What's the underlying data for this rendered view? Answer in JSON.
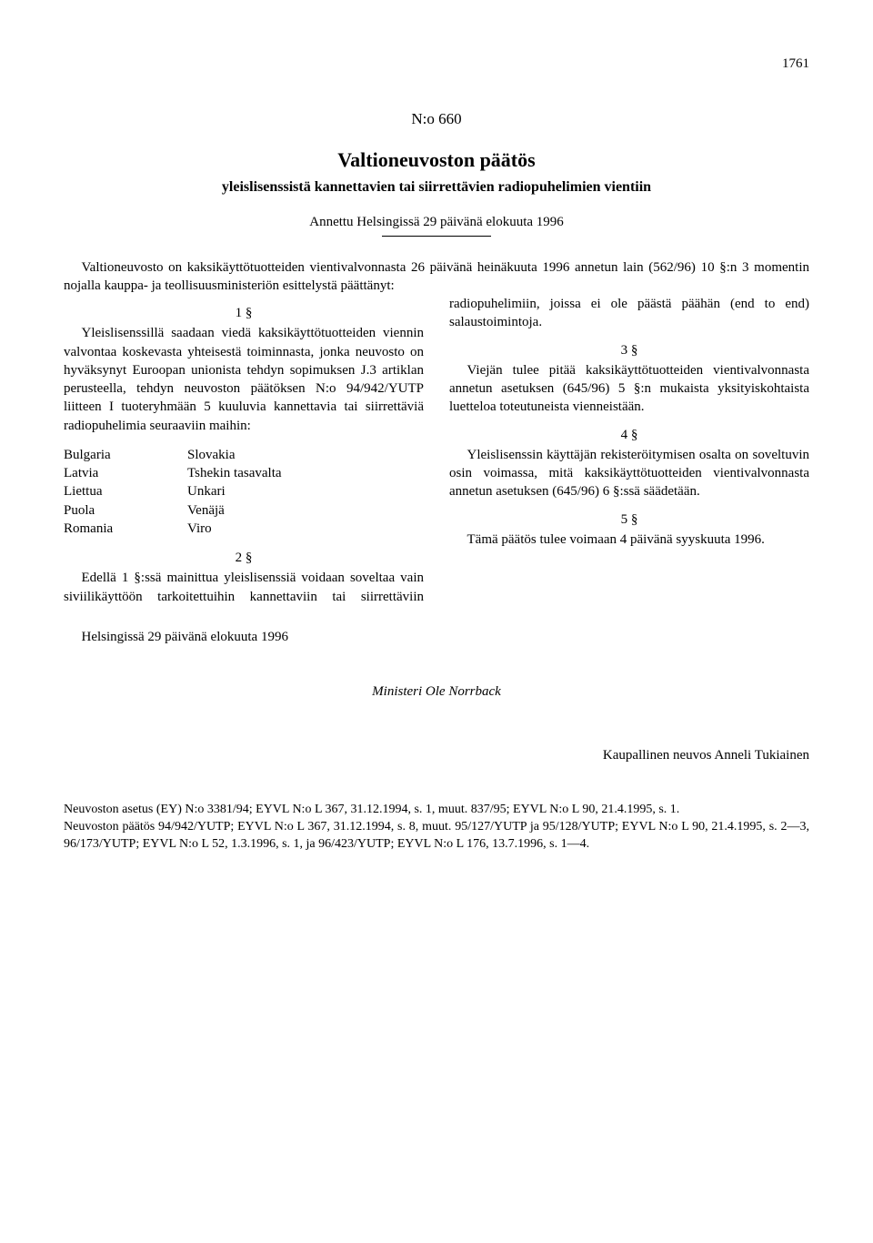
{
  "page_number": "1761",
  "doc_number": "N:o 660",
  "title": "Valtioneuvoston päätös",
  "subtitle": "yleislisenssistä kannettavien tai siirrettävien radiopuhelimien vientiin",
  "given_at": "Annettu Helsingissä 29 päivänä elokuuta 1996",
  "preamble": "Valtioneuvosto on kaksikäyttötuotteiden vientivalvonnasta 26 päivänä heinäkuuta 1996 annetun lain (562/96) 10 §:n 3 momentin nojalla kauppa- ja teollisuusministeriön esittelystä päättänyt:",
  "sections": {
    "s1_num": "1 §",
    "s1_body": "Yleislisenssillä saadaan viedä kaksikäyttötuotteiden viennin valvontaa koskevasta yhteisestä toiminnasta, jonka neuvosto on hyväksynyt Euroopan unionista tehdyn sopimuksen J.3 artiklan perusteella, tehdyn neuvoston päätöksen N:o 94/942/YUTP liitteen I tuoteryhmään 5 kuuluvia kannettavia tai siirrettäviä radiopuhelimia seuraaviin maihin:",
    "countries_left": [
      "Bulgaria",
      "Latvia",
      "Liettua",
      "Puola",
      "Romania"
    ],
    "countries_right": [
      "Slovakia",
      "Tshekin tasavalta",
      "Unkari",
      "Venäjä",
      "Viro"
    ],
    "s2_num": "2 §",
    "s2_body": "Edellä 1 §:ssä mainittua yleislisenssiä voidaan soveltaa vain siviilikäyttöön tarkoitettuihin kannettaviin tai siirrettäviin radiopuhelimiin, joissa ei ole päästä päähän (end to end) salaustoimintoja.",
    "s3_num": "3 §",
    "s3_body": "Viejän tulee pitää kaksikäyttötuotteiden vientivalvonnasta annetun asetuksen (645/96) 5 §:n mukaista yksityiskohtaista luetteloa toteutuneista vienneistään.",
    "s4_num": "4 §",
    "s4_body": "Yleislisenssin käyttäjän rekisteröitymisen osalta on soveltuvin osin voimassa, mitä kaksikäyttötuotteiden vientivalvonnasta annetun asetuksen (645/96) 6 §:ssä säädetään.",
    "s5_num": "5 §",
    "s5_body": "Tämä päätös tulee voimaan 4 päivänä syyskuuta 1996."
  },
  "signature_place": "Helsingissä 29 päivänä elokuuta 1996",
  "minister": "Ministeri Ole Norrback",
  "counsel": "Kaupallinen neuvos Anneli Tukiainen",
  "footnotes": {
    "f1": "Neuvoston asetus (EY) N:o 3381/94; EYVL N:o L 367, 31.12.1994, s. 1, muut. 837/95; EYVL N:o L 90, 21.4.1995, s. 1.",
    "f2": "Neuvoston päätös 94/942/YUTP; EYVL N:o L 367, 31.12.1994, s. 8, muut. 95/127/YUTP ja 95/128/YUTP; EYVL N:o L 90, 21.4.1995, s. 2—3, 96/173/YUTP; EYVL N:o L 52, 1.3.1996, s. 1, ja 96/423/YUTP; EYVL N:o L 176, 13.7.1996, s. 1—4."
  }
}
